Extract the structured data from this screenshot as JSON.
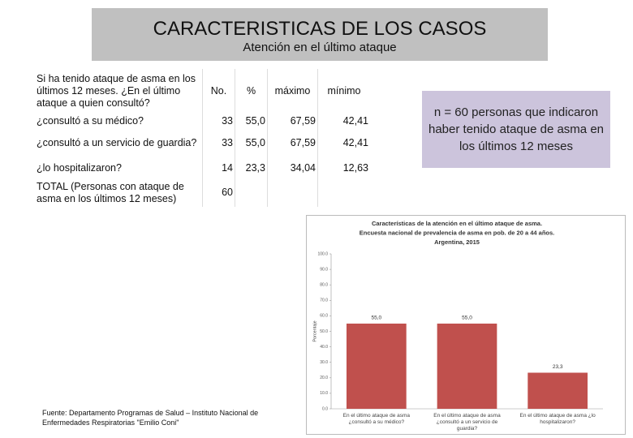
{
  "header": {
    "title": "CARACTERISTICAS DE LOS CASOS",
    "subtitle": "Atención en el último ataque"
  },
  "table": {
    "columns": [
      "Si ha tenido ataque de asma en los últimos 12 meses. ¿En el último ataque a quien consultó?",
      "No.",
      "%",
      "máximo",
      "mínimo"
    ],
    "rows": [
      [
        "¿consultó a su médico?",
        "33",
        "55,0",
        "67,59",
        "42,41"
      ],
      [
        "¿consultó a un servicio de guardia?",
        "33",
        "55,0",
        "67,59",
        "42,41"
      ],
      [
        "¿lo hospitalizaron?",
        "14",
        "23,3",
        "34,04",
        "12,63"
      ],
      [
        "TOTAL (Personas con ataque de asma en los últimos 12 meses)",
        "60"
      ]
    ]
  },
  "note": "n = 60 personas que indicaron haber tenido ataque de asma en los últimos 12 meses",
  "source": "Fuente: Departamento Programas de Salud – Instituto Nacional de Enfermedades Respiratorias \"Emilio Coni\"",
  "chart_data": {
    "type": "bar",
    "title_lines": [
      "Características de la atención en el último ataque de asma.",
      "Encuesta nacional de prevalencia de asma en pob. de 20 a 44 años.",
      "Argentina, 2015"
    ],
    "y_label": "Porcentaje",
    "categories": [
      "En el último ataque de asma ¿consultó a su médico?",
      "En el último ataque de asma ¿consultó a un servicio de guardia?",
      "En el último ataque de asma ¿lo hospitalizaron?"
    ],
    "values": [
      55.0,
      55.0,
      23.3
    ],
    "value_labels": [
      "55,0",
      "55,0",
      "23,3"
    ],
    "color": "#c0504d",
    "ylim": [
      0,
      100
    ],
    "yticks": [
      {
        "value": 0,
        "label": "0.0"
      },
      {
        "value": 10,
        "label": "10.0"
      },
      {
        "value": 20,
        "label": "20.0"
      },
      {
        "value": 30,
        "label": "30.0"
      },
      {
        "value": 40,
        "label": "40.0"
      },
      {
        "value": 50,
        "label": "50.0"
      },
      {
        "value": 60,
        "label": "60.0"
      },
      {
        "value": 70,
        "label": "70.0"
      },
      {
        "value": 80,
        "label": "80.0"
      },
      {
        "value": 90,
        "label": "90.0"
      },
      {
        "value": 100,
        "label": "100.0"
      }
    ]
  }
}
